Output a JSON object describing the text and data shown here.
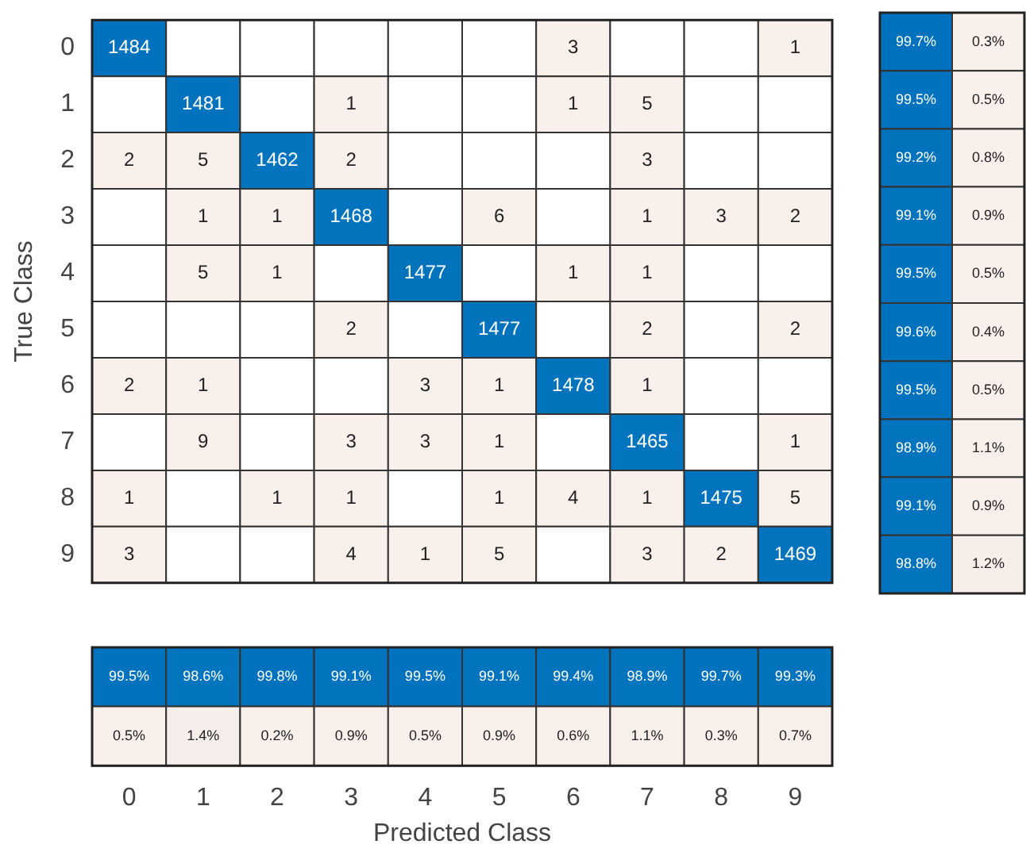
{
  "chart_data": [
    {
      "type": "heatmap",
      "ylabel": "True Class",
      "tick_labels": "y",
      "data_labels": true,
      "categories": [
        "0",
        "1",
        "2",
        "3",
        "4",
        "5",
        "6",
        "7",
        "8",
        "9"
      ],
      "y_categories": [
        "0",
        "1",
        "2",
        "3",
        "4",
        "5",
        "6",
        "7",
        "8",
        "9"
      ],
      "cells": [
        [
          1484,
          null,
          null,
          null,
          null,
          null,
          3,
          null,
          null,
          1
        ],
        [
          null,
          1481,
          null,
          1,
          null,
          null,
          1,
          5,
          null,
          null
        ],
        [
          2,
          5,
          1462,
          2,
          null,
          null,
          null,
          3,
          null,
          null
        ],
        [
          null,
          1,
          1,
          1468,
          null,
          6,
          null,
          1,
          3,
          2
        ],
        [
          null,
          5,
          1,
          null,
          1477,
          null,
          1,
          1,
          null,
          null
        ],
        [
          null,
          null,
          null,
          2,
          null,
          1477,
          null,
          2,
          null,
          2
        ],
        [
          2,
          1,
          null,
          null,
          3,
          1,
          1478,
          1,
          null,
          null
        ],
        [
          null,
          9,
          null,
          3,
          3,
          1,
          null,
          1465,
          null,
          1
        ],
        [
          1,
          null,
          1,
          1,
          null,
          1,
          4,
          1,
          1475,
          5
        ],
        [
          3,
          null,
          null,
          4,
          1,
          5,
          null,
          3,
          2,
          1469
        ]
      ]
    },
    {
      "type": "heatmap",
      "tick_labels": false,
      "categories": [
        null,
        null
      ],
      "y_categories": [
        null,
        null,
        null,
        null,
        null,
        null,
        null,
        null,
        null,
        null
      ],
      "cells": [
        [
          99.7,
          0.3
        ],
        [
          99.5,
          0.5
        ],
        [
          99.2,
          0.8
        ],
        [
          99.1,
          0.9
        ],
        [
          99.5,
          0.5
        ],
        [
          99.6,
          0.4
        ],
        [
          99.5,
          0.5
        ],
        [
          98.9,
          1.1
        ],
        [
          99.1,
          0.9
        ],
        [
          98.8,
          1.2
        ]
      ],
      "cell_labels": [
        [
          "99.7%",
          "0.3%"
        ],
        [
          "99.5%",
          "0.5%"
        ],
        [
          "99.2%",
          "0.8%"
        ],
        [
          "99.1%",
          "0.9%"
        ],
        [
          "99.5%",
          "0.5%"
        ],
        [
          "99.6%",
          "0.4%"
        ],
        [
          "99.5%",
          "0.5%"
        ],
        [
          "98.9%",
          "1.1%"
        ],
        [
          "99.1%",
          "0.9%"
        ],
        [
          "98.8%",
          "1.2%"
        ]
      ]
    },
    {
      "type": "heatmap",
      "xlabel": "Predicted Class",
      "tick_labels": "x",
      "categories": [
        "0",
        "1",
        "2",
        "3",
        "4",
        "5",
        "6",
        "7",
        "8",
        "9"
      ],
      "y_categories": [
        null,
        null
      ],
      "cells": [
        [
          99.5,
          98.6,
          99.8,
          99.1,
          99.5,
          99.1,
          99.4,
          98.9,
          99.7,
          99.3
        ],
        [
          0.5,
          1.4,
          0.2,
          0.9,
          0.5,
          0.9,
          0.6,
          1.1,
          0.3,
          0.7
        ]
      ],
      "cell_labels": [
        [
          "99.5%",
          "98.6%",
          "99.8%",
          "99.1%",
          "99.5%",
          "99.1%",
          "99.4%",
          "98.9%",
          "99.7%",
          "99.3%"
        ],
        [
          "0.5%",
          "1.4%",
          "0.2%",
          "0.9%",
          "0.5%",
          "0.9%",
          "0.6%",
          "1.1%",
          "0.3%",
          "0.7%"
        ]
      ]
    }
  ]
}
